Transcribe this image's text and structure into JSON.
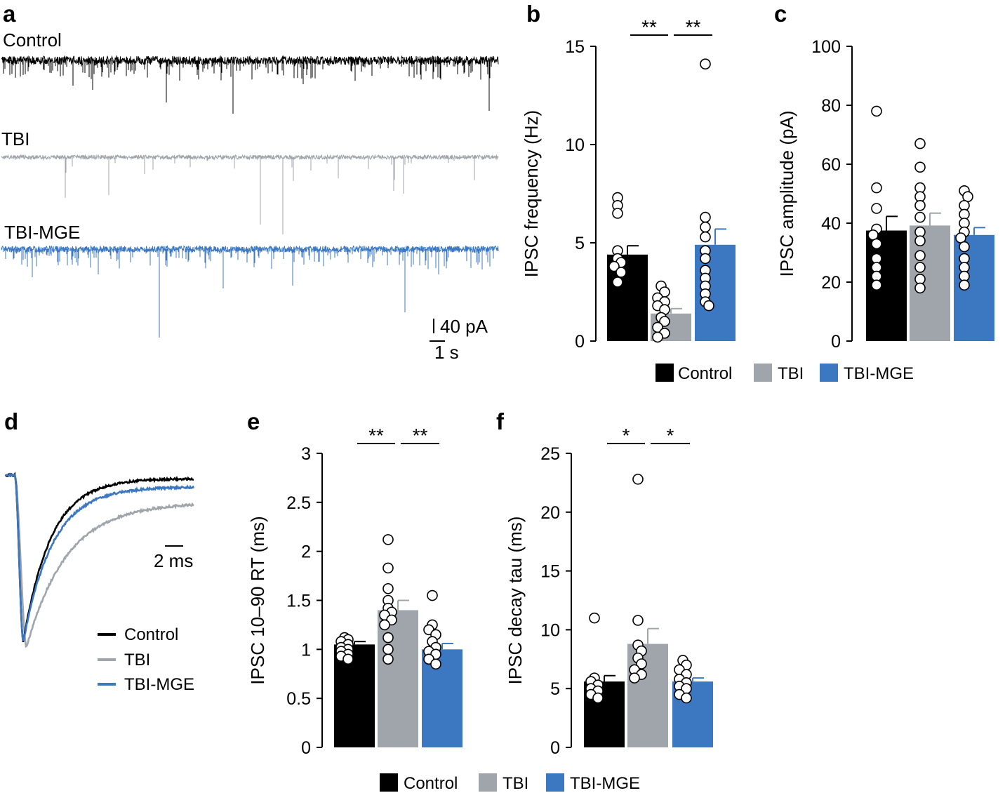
{
  "colors": {
    "control": "#000000",
    "tbi": "#a0a5ab",
    "mge": "#3c78c2"
  },
  "chart_data": [
    {
      "panel": "a",
      "type": "line",
      "traces": [
        {
          "name": "Control",
          "label": "Control",
          "color": "#000000"
        },
        {
          "name": "TBI",
          "label": "TBI",
          "color": "#a0a5ab"
        },
        {
          "name": "TBI-MGE",
          "label": "TBI-MGE",
          "color": "#3c78c2"
        }
      ],
      "scale_bar": {
        "y_label": "40 pA",
        "x_label": "1 s"
      }
    },
    {
      "panel": "b",
      "type": "bar",
      "ylabel": "IPSC frequency (Hz)",
      "ylim": [
        0,
        15
      ],
      "yticks": [
        0,
        5,
        10,
        15
      ],
      "categories": [
        "Control",
        "TBI",
        "TBI-MGE"
      ],
      "values": [
        4.4,
        1.4,
        4.9
      ],
      "errors": [
        0.45,
        0.25,
        0.8
      ],
      "points": [
        [
          7.3,
          6.9,
          6.5,
          4.6,
          4.2,
          4.0,
          3.8,
          3.5,
          3.0
        ],
        [
          2.8,
          2.5,
          2.2,
          2.0,
          1.8,
          1.6,
          1.2,
          1.0,
          0.7,
          0.4,
          0.2
        ],
        [
          14.1,
          6.3,
          5.8,
          5.3,
          4.6,
          4.2,
          3.6,
          3.2,
          2.8,
          2.4,
          2.0,
          1.8
        ]
      ],
      "significance": [
        {
          "between": [
            0,
            1
          ],
          "label": "**"
        },
        {
          "between": [
            1,
            2
          ],
          "label": "**"
        }
      ]
    },
    {
      "panel": "c",
      "type": "bar",
      "ylabel": "IPSC amplitude (pA)",
      "ylim": [
        0,
        100
      ],
      "yticks": [
        0,
        20,
        40,
        60,
        80,
        100
      ],
      "categories": [
        "Control",
        "TBI",
        "TBI-MGE"
      ],
      "values": [
        37.5,
        39.2,
        36.0
      ],
      "errors": [
        4.8,
        4.2,
        2.5
      ],
      "points": [
        [
          78,
          52,
          45,
          38,
          36,
          33,
          28,
          25,
          22,
          19
        ],
        [
          67,
          59,
          52,
          49,
          46,
          42,
          37,
          34,
          29,
          25,
          21,
          18
        ],
        [
          51,
          49,
          46,
          43,
          40,
          37,
          35,
          32,
          28,
          25,
          22,
          19
        ]
      ],
      "legend": [
        "Control",
        "TBI",
        "TBI-MGE"
      ]
    },
    {
      "panel": "d",
      "type": "line",
      "traces": [
        {
          "name": "Control",
          "label": "Control",
          "color": "#000000",
          "delay": 0.0,
          "tau": 3.0
        },
        {
          "name": "TBI",
          "label": "TBI",
          "color": "#a0a5ab",
          "delay": 0.35,
          "tau": 4.4
        },
        {
          "name": "TBI-MGE",
          "label": "TBI-MGE",
          "color": "#3c78c2",
          "delay": 0.0,
          "tau": 3.2
        }
      ],
      "scale_bar": {
        "x_label": "2 ms"
      }
    },
    {
      "panel": "e",
      "type": "bar",
      "ylabel": "IPSC 10–90 RT (ms)",
      "ylim": [
        0,
        3
      ],
      "yticks": [
        0,
        0.5,
        1,
        1.5,
        2,
        2.5,
        3
      ],
      "ytick_labels": [
        "0",
        "0.5",
        "1",
        "1.5",
        "2",
        "2.5",
        "3"
      ],
      "categories": [
        "Control",
        "TBI",
        "TBI-MGE"
      ],
      "values": [
        1.05,
        1.4,
        1.0
      ],
      "errors": [
        0.03,
        0.1,
        0.06
      ],
      "points": [
        [
          1.12,
          1.1,
          1.08,
          1.05,
          1.02,
          1.0,
          0.98,
          0.95,
          0.93,
          0.9
        ],
        [
          2.12,
          1.83,
          1.62,
          1.5,
          1.42,
          1.38,
          1.35,
          1.3,
          1.25,
          1.12,
          1.0,
          0.9
        ],
        [
          1.55,
          1.25,
          1.2,
          1.15,
          1.08,
          1.02,
          0.98,
          0.95,
          0.9,
          0.85
        ]
      ],
      "significance": [
        {
          "between": [
            0,
            1
          ],
          "label": "**"
        },
        {
          "between": [
            1,
            2
          ],
          "label": "**"
        }
      ]
    },
    {
      "panel": "f",
      "type": "bar",
      "ylabel": "IPSC decay tau (ms)",
      "ylim": [
        0,
        25
      ],
      "yticks": [
        0,
        5,
        10,
        15,
        20,
        25
      ],
      "categories": [
        "Control",
        "TBI",
        "TBI-MGE"
      ],
      "values": [
        5.6,
        8.8,
        5.6
      ],
      "errors": [
        0.5,
        1.3,
        0.3
      ],
      "points": [
        [
          11.0,
          5.9,
          5.6,
          5.3,
          5.0,
          4.8,
          4.5,
          4.2
        ],
        [
          22.8,
          10.8,
          8.7,
          8.2,
          7.6,
          7.1,
          6.6,
          6.2,
          5.9
        ],
        [
          7.4,
          7.0,
          6.6,
          6.2,
          5.8,
          5.5,
          5.2,
          5.0,
          4.5,
          4.2
        ]
      ],
      "significance": [
        {
          "between": [
            0,
            1
          ],
          "label": "*"
        },
        {
          "between": [
            1,
            2
          ],
          "label": "*"
        }
      ],
      "legend": [
        "Control",
        "TBI",
        "TBI-MGE"
      ]
    }
  ]
}
